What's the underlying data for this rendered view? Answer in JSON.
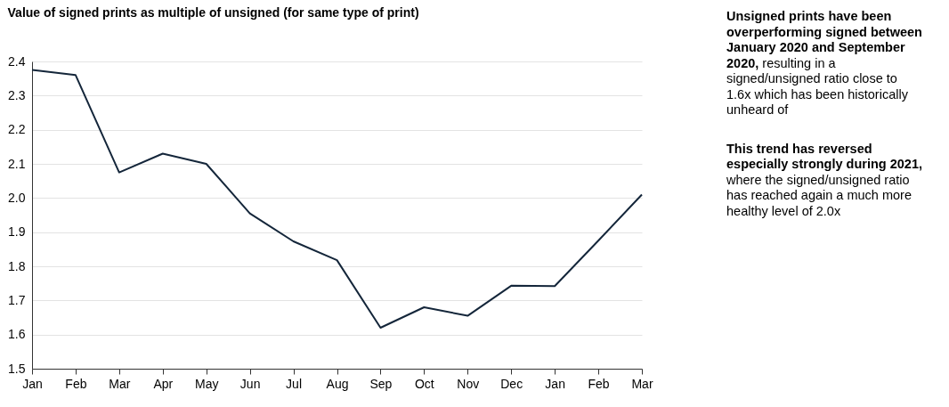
{
  "chart_data": {
    "type": "line",
    "title": "Value of signed prints as multiple of unsigned (for same type of print)",
    "categories": [
      "Jan",
      "Feb",
      "Mar",
      "Apr",
      "May",
      "Jun",
      "Jul",
      "Aug",
      "Sep",
      "Oct",
      "Nov",
      "Dec",
      "Jan",
      "Feb",
      "Mar"
    ],
    "series": [
      {
        "color": "#14263a",
        "values": [
          2.375,
          2.36,
          2.075,
          2.13,
          2.1,
          1.955,
          1.873,
          1.818,
          1.62,
          1.68,
          1.655,
          1.743,
          1.742,
          1.875,
          2.01
        ]
      }
    ],
    "ylim": [
      1.5,
      2.4
    ],
    "yticks": [
      {
        "value": 1.5,
        "label": "1.5"
      },
      1.6,
      1.7,
      1.8,
      1.9,
      {
        "value": 2.0,
        "label": "2.0"
      },
      2.1,
      2.2,
      2.3,
      2.4
    ],
    "grid": "y",
    "marker": "none",
    "line_style": "solid",
    "annotations": [
      "Unsigned prints have been overperforming signed between January 2020 and September 2020,",
      " resulting in a signed/unsigned ratio close to 1.6x which has been historically unheard of",
      "This trend has reversed especially strongly during 2021,",
      " where the signed/unsigned ratio has reached again a much more healthy level of 2.0x"
    ]
  }
}
